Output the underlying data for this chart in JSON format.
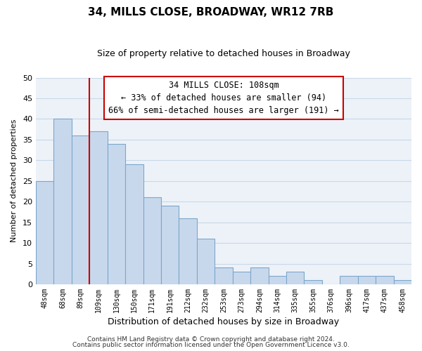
{
  "title": "34, MILLS CLOSE, BROADWAY, WR12 7RB",
  "subtitle": "Size of property relative to detached houses in Broadway",
  "xlabel": "Distribution of detached houses by size in Broadway",
  "ylabel": "Number of detached properties",
  "footer_lines": [
    "Contains HM Land Registry data © Crown copyright and database right 2024.",
    "Contains public sector information licensed under the Open Government Licence v3.0."
  ],
  "bin_labels": [
    "48sqm",
    "68sqm",
    "89sqm",
    "109sqm",
    "130sqm",
    "150sqm",
    "171sqm",
    "191sqm",
    "212sqm",
    "232sqm",
    "253sqm",
    "273sqm",
    "294sqm",
    "314sqm",
    "335sqm",
    "355sqm",
    "376sqm",
    "396sqm",
    "417sqm",
    "437sqm",
    "458sqm"
  ],
  "bar_heights": [
    25,
    40,
    36,
    37,
    34,
    29,
    21,
    19,
    16,
    11,
    4,
    3,
    4,
    2,
    3,
    1,
    0,
    2,
    2,
    2,
    1
  ],
  "bar_color": "#c8d8ec",
  "bar_edge_color": "#7ba7cb",
  "vline_x_index": 3,
  "vline_color": "#cc0000",
  "annotation_line1": "34 MILLS CLOSE: 108sqm",
  "annotation_line2": "← 33% of detached houses are smaller (94)",
  "annotation_line3": "66% of semi-detached houses are larger (191) →",
  "annotation_box_edge_color": "#cc0000",
  "ylim": [
    0,
    50
  ],
  "yticks": [
    0,
    5,
    10,
    15,
    20,
    25,
    30,
    35,
    40,
    45,
    50
  ],
  "grid_color": "#c8d8e8",
  "background_color": "#edf2f8",
  "title_fontsize": 11,
  "subtitle_fontsize": 9
}
